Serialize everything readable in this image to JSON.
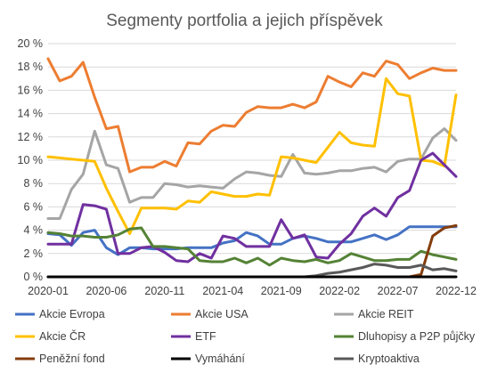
{
  "chart_data": {
    "type": "line",
    "title": "Segmenty portfolia a jejich příspěvek",
    "xlabel": "",
    "ylabel": "",
    "ylim": [
      0,
      20
    ],
    "grid": true,
    "legend_position": "bottom",
    "y_ticks": [
      "0 %",
      "2 %",
      "4 %",
      "6 %",
      "8 %",
      "10 %",
      "12 %",
      "14 %",
      "16 %",
      "18 %",
      "20 %"
    ],
    "x_ticks": [
      "2020-01",
      "2020-06",
      "2020-11",
      "2021-04",
      "2021-09",
      "2022-02",
      "2022-07",
      "2022-12"
    ],
    "x": [
      "2020-01",
      "2020-02",
      "2020-03",
      "2020-04",
      "2020-05",
      "2020-06",
      "2020-07",
      "2020-08",
      "2020-09",
      "2020-10",
      "2020-11",
      "2020-12",
      "2021-01",
      "2021-02",
      "2021-03",
      "2021-04",
      "2021-05",
      "2021-06",
      "2021-07",
      "2021-08",
      "2021-09",
      "2021-10",
      "2021-11",
      "2021-12",
      "2022-01",
      "2022-02",
      "2022-03",
      "2022-04",
      "2022-05",
      "2022-06",
      "2022-07",
      "2022-08",
      "2022-09",
      "2022-10",
      "2022-11",
      "2022-12"
    ],
    "series": [
      {
        "name": "Akcie Evropa",
        "color": "#4472c4",
        "values": [
          3.7,
          3.6,
          2.7,
          3.8,
          4.0,
          2.5,
          1.9,
          2.5,
          2.5,
          2.4,
          2.4,
          2.4,
          2.5,
          2.5,
          2.5,
          2.9,
          3.1,
          3.8,
          3.5,
          2.8,
          2.8,
          3.3,
          3.5,
          3.3,
          3.0,
          3.0,
          3.0,
          3.3,
          3.6,
          3.2,
          3.6,
          4.3,
          4.3,
          4.3,
          4.3,
          4.3
        ]
      },
      {
        "name": "Akcie USA",
        "color": "#ed7d31",
        "values": [
          18.7,
          16.8,
          17.2,
          18.4,
          15.4,
          12.7,
          12.9,
          9.0,
          9.4,
          9.4,
          9.9,
          9.5,
          11.5,
          11.4,
          12.5,
          13.0,
          12.9,
          14.1,
          14.6,
          14.5,
          14.5,
          14.8,
          14.5,
          15.0,
          17.2,
          16.7,
          16.3,
          17.5,
          17.2,
          18.5,
          18.2,
          17.0,
          17.5,
          17.9,
          17.7,
          17.7
        ]
      },
      {
        "name": "Akcie REIT",
        "color": "#a5a5a5",
        "values": [
          5.0,
          5.0,
          7.5,
          8.8,
          12.5,
          9.6,
          9.3,
          6.4,
          6.8,
          6.8,
          8.0,
          7.9,
          7.7,
          7.8,
          7.7,
          7.6,
          8.4,
          9.0,
          8.9,
          8.7,
          8.6,
          10.5,
          8.9,
          8.8,
          8.9,
          9.1,
          9.1,
          9.3,
          9.4,
          9.0,
          9.9,
          10.1,
          10.1,
          11.9,
          12.7,
          11.7
        ]
      },
      {
        "name": "Akcie ČR",
        "color": "#ffc000",
        "values": [
          10.3,
          10.2,
          10.1,
          10.0,
          9.9,
          7.6,
          5.6,
          3.7,
          5.9,
          5.9,
          5.9,
          5.8,
          6.5,
          6.4,
          7.3,
          7.1,
          6.9,
          6.9,
          7.1,
          7.0,
          10.3,
          10.2,
          10.0,
          9.8,
          11.1,
          12.4,
          11.5,
          11.3,
          11.2,
          17.0,
          15.7,
          15.5,
          10.0,
          9.9,
          9.5,
          15.6
        ]
      },
      {
        "name": "ETF",
        "color": "#7030a0",
        "values": [
          2.8,
          2.8,
          2.8,
          6.2,
          6.1,
          5.8,
          2.0,
          2.0,
          2.5,
          2.6,
          2.1,
          1.4,
          1.3,
          2.0,
          1.6,
          3.5,
          3.3,
          2.6,
          2.6,
          2.6,
          4.9,
          3.3,
          3.6,
          1.7,
          1.6,
          2.8,
          3.7,
          5.2,
          5.9,
          5.2,
          6.8,
          7.4,
          10.0,
          10.6,
          9.6,
          8.6
        ]
      },
      {
        "name": "Dluhopisy a P2P půjčky",
        "color": "#548235",
        "values": [
          3.8,
          3.7,
          3.5,
          3.5,
          3.4,
          3.4,
          3.6,
          4.1,
          4.2,
          2.6,
          2.6,
          2.5,
          2.4,
          1.4,
          1.3,
          1.3,
          1.6,
          1.2,
          1.6,
          1.0,
          1.6,
          1.4,
          1.3,
          1.5,
          1.2,
          1.4,
          2.0,
          1.7,
          1.4,
          1.4,
          1.5,
          1.5,
          2.2,
          1.9,
          1.7,
          1.5
        ]
      },
      {
        "name": "Peněžní fond",
        "color": "#843c0c",
        "values": [
          0,
          0,
          0,
          0,
          0,
          0,
          0,
          0,
          0,
          0,
          0,
          0,
          0,
          0,
          0,
          0,
          0,
          0,
          0,
          0,
          0,
          0,
          0,
          0,
          0,
          0,
          0,
          0,
          0,
          0,
          0,
          0,
          0.2,
          3.5,
          4.2,
          4.4
        ]
      },
      {
        "name": "Vymáhání",
        "color": "#000000",
        "values": [
          0,
          0,
          0,
          0,
          0,
          0,
          0,
          0,
          0,
          0,
          0,
          0,
          0,
          0,
          0,
          0,
          0,
          0,
          0,
          0,
          0,
          0,
          0,
          0,
          0,
          0,
          0,
          0,
          0,
          0,
          0,
          0,
          0,
          0,
          0,
          0
        ]
      },
      {
        "name": "Kryptoaktiva",
        "color": "#595959",
        "values": [
          0,
          0,
          0,
          0,
          0,
          0,
          0,
          0,
          0,
          0,
          0,
          0,
          0,
          0,
          0,
          0,
          0,
          0,
          0,
          0,
          0,
          0,
          0,
          0.1,
          0.3,
          0.4,
          0.6,
          0.8,
          1.1,
          1.0,
          0.8,
          0.8,
          1.0,
          0.6,
          0.7,
          0.5
        ]
      }
    ]
  }
}
